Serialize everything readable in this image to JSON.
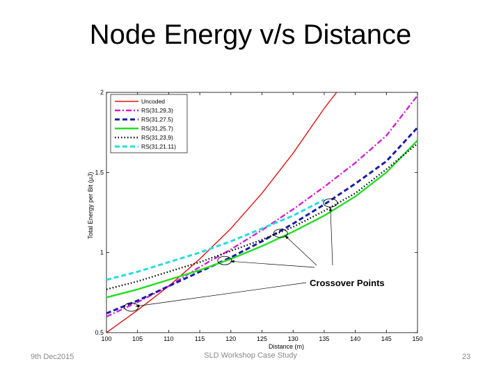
{
  "slide": {
    "title": "Node Energy v/s Distance",
    "footer_left": "9th Dec2015",
    "footer_center": "SLD Workshop Case Study",
    "page_number": "23"
  },
  "chart_data": {
    "type": "line",
    "xlabel": "Distance (m)",
    "ylabel": "Total Energy per Bit (μJ)",
    "xlim": [
      100,
      150
    ],
    "ylim": [
      0.5,
      2
    ],
    "xticks": [
      "100",
      "105",
      "110",
      "115",
      "120",
      "125",
      "130",
      "135",
      "140",
      "145",
      "150"
    ],
    "yticks": [
      "0.5",
      "1",
      "1.5",
      "2"
    ],
    "grid": false,
    "legend_position": "top-left",
    "series": [
      {
        "name": "Uncoded",
        "color": "#e01010",
        "style": "solid",
        "x": [
          100,
          105,
          110,
          115,
          120,
          125,
          130,
          135,
          137
        ],
        "y": [
          0.5,
          0.64,
          0.79,
          0.96,
          1.15,
          1.37,
          1.62,
          1.9,
          2.0
        ]
      },
      {
        "name": "RS(31,29,3)",
        "color": "#d020d0",
        "style": "dashdot",
        "x": [
          100,
          105,
          110,
          115,
          120,
          125,
          130,
          135,
          140,
          145,
          150
        ],
        "y": [
          0.6,
          0.69,
          0.79,
          0.91,
          1.02,
          1.14,
          1.27,
          1.41,
          1.56,
          1.73,
          1.98
        ]
      },
      {
        "name": "RS(31,27.5)",
        "color": "#1a1aa8",
        "style": "dash",
        "x": [
          100,
          105,
          110,
          115,
          120,
          125,
          130,
          135,
          140,
          145,
          150
        ],
        "y": [
          0.62,
          0.7,
          0.79,
          0.88,
          0.97,
          1.07,
          1.18,
          1.3,
          1.43,
          1.57,
          1.78
        ]
      },
      {
        "name": "RS(31,25.7)",
        "color": "#22dd22",
        "style": "solid",
        "x": [
          100,
          105,
          110,
          115,
          120,
          125,
          130,
          135,
          140,
          145,
          150
        ],
        "y": [
          0.72,
          0.77,
          0.83,
          0.89,
          0.96,
          1.04,
          1.13,
          1.23,
          1.35,
          1.5,
          1.7
        ]
      },
      {
        "name": "RS(31,23,9)",
        "color": "#000000",
        "style": "dot",
        "x": [
          100,
          105,
          110,
          115,
          120,
          125,
          130,
          135,
          140,
          145,
          150
        ],
        "y": [
          0.77,
          0.82,
          0.88,
          0.94,
          1.01,
          1.08,
          1.16,
          1.26,
          1.37,
          1.52,
          1.68
        ]
      },
      {
        "name": "RS(31,21.11)",
        "color": "#22dddd",
        "style": "dash",
        "x": [
          100,
          105,
          110,
          115,
          120,
          125,
          130,
          135
        ],
        "y": [
          0.83,
          0.88,
          0.94,
          1.0,
          1.07,
          1.15,
          1.23,
          1.33
        ]
      }
    ],
    "annotations": [
      {
        "text": "Crossover Points"
      }
    ],
    "crossover_points": [
      {
        "x": 104,
        "y": 0.66
      },
      {
        "x": 119,
        "y": 0.95
      },
      {
        "x": 128,
        "y": 1.12
      },
      {
        "x": 136,
        "y": 1.31
      }
    ]
  }
}
